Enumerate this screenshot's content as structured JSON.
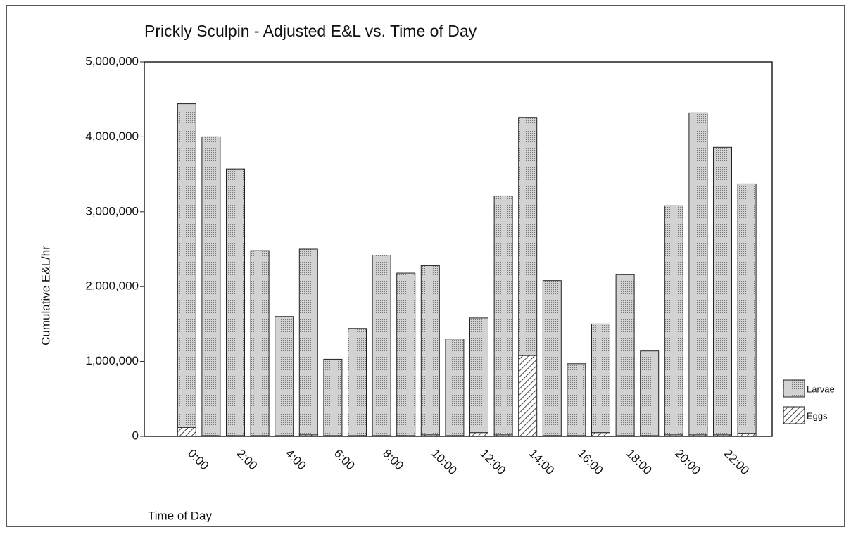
{
  "chart_data": {
    "type": "stacked_bar",
    "title": "Prickly Sculpin - Adjusted E&L vs. Time of Day",
    "x_label": "Time of Day",
    "y_label": "Cumulative E&L/hr",
    "categories": [
      "0:00",
      null,
      "2:00",
      null,
      "4:00",
      null,
      "6:00",
      null,
      "8:00",
      null,
      "10:00",
      null,
      "12:00",
      null,
      "14:00",
      null,
      "16:00",
      null,
      "18:00",
      null,
      "20:00",
      null,
      "22:00",
      null
    ],
    "series": [
      {
        "name": "Eggs",
        "color": "#ffffff",
        "values": [
          120000,
          10000,
          10000,
          10000,
          10000,
          20000,
          10000,
          10000,
          10000,
          10000,
          20000,
          10000,
          50000,
          20000,
          1080000,
          10000,
          10000,
          50000,
          10000,
          10000,
          20000,
          20000,
          20000,
          40000
        ]
      },
      {
        "name": "Larvae",
        "color": "#c8c8c8",
        "values": [
          4320000,
          3990000,
          3560000,
          2470000,
          1590000,
          2480000,
          1020000,
          1430000,
          2410000,
          2170000,
          2260000,
          1290000,
          1530000,
          3190000,
          3180000,
          2070000,
          960000,
          1450000,
          2150000,
          1130000,
          3060000,
          4300000,
          3840000,
          3330000
        ]
      }
    ],
    "ylim": [
      0,
      5000000
    ],
    "yticks": [
      0,
      {
        "value": 1000000,
        "label": "1,000,000"
      },
      {
        "value": 2000000,
        "label": "2,000,000"
      },
      {
        "value": 3000000,
        "label": "3,000,000"
      },
      {
        "value": 4000000,
        "label": "4,000,000"
      },
      {
        "value": 5000000,
        "label": "5,000,000"
      }
    ],
    "legend": "right"
  }
}
